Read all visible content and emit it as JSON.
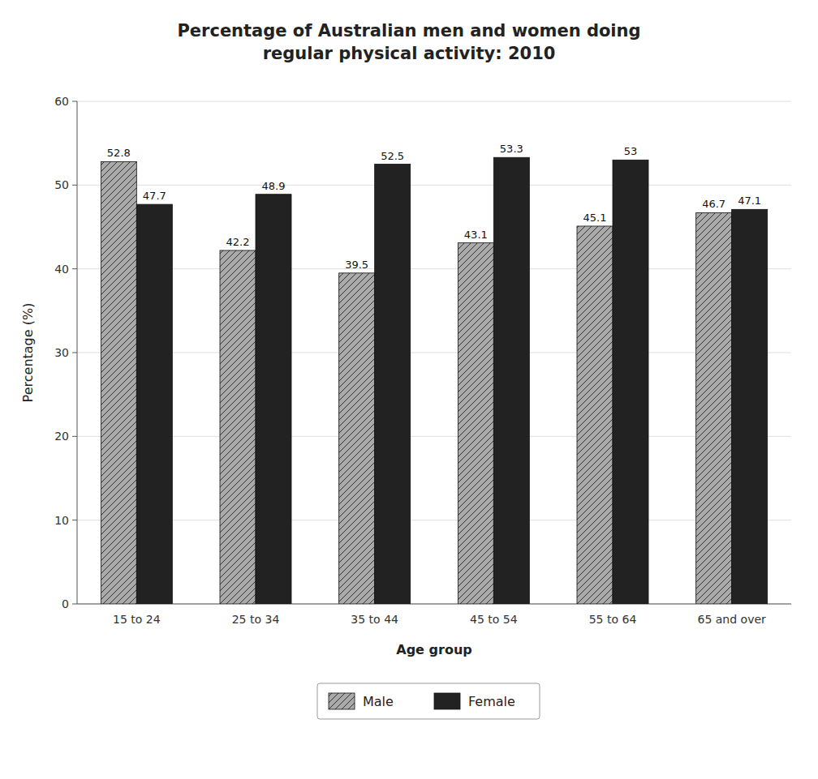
{
  "chart_data": {
    "type": "bar",
    "title": "Percentage of Australian men and women doing\nregular physical activity: 2010",
    "xlabel": "Age group",
    "ylabel": "Percentage (%)",
    "categories": [
      "15 to 24",
      "25 to 34",
      "35 to 44",
      "45 to 54",
      "55 to 64",
      "65 and over"
    ],
    "series": [
      {
        "name": "Male",
        "color": "#aaaaaa",
        "values": [
          52.8,
          42.2,
          39.5,
          43.1,
          45.1,
          46.7
        ]
      },
      {
        "name": "Female",
        "color": "#222222",
        "values": [
          47.7,
          48.9,
          52.5,
          53.3,
          53,
          47.1
        ]
      }
    ],
    "ylim": [
      0,
      60
    ],
    "yticks": [
      0,
      10,
      20,
      30,
      40,
      50,
      60
    ],
    "grid": true,
    "data_labels": true,
    "legend": "bottom"
  }
}
